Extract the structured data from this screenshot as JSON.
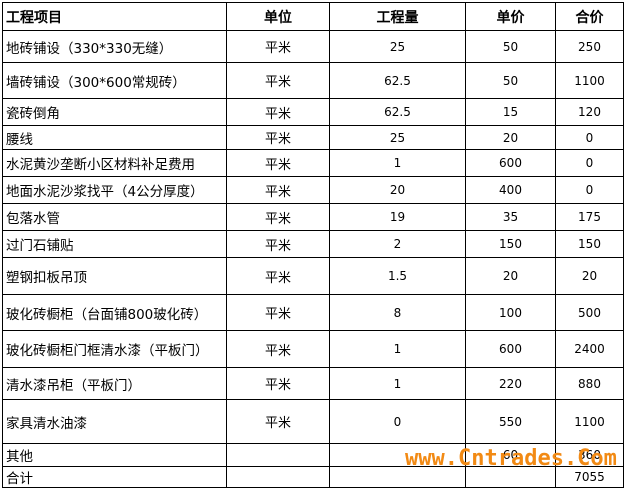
{
  "table": {
    "headers": {
      "name": "工程项目",
      "unit": "单位",
      "qty": "工程量",
      "price": "单价",
      "total": "合价"
    },
    "rows": [
      {
        "name": "地砖铺设（330*330无缝）",
        "unit": "平米",
        "qty": "25",
        "price": "50",
        "total": "250"
      },
      {
        "name": "墙砖铺设（300*600常规砖）",
        "unit": "平米",
        "qty": "62.5",
        "price": "50",
        "total": "1100"
      },
      {
        "name": "瓷砖倒角",
        "unit": "平米",
        "qty": "62.5",
        "price": "15",
        "total": "120"
      },
      {
        "name": "腰线",
        "unit": "平米",
        "qty": "25",
        "price": "20",
        "total": "0"
      },
      {
        "name": "水泥黄沙垄断小区材料补足费用",
        "unit": "平米",
        "qty": "1",
        "price": "600",
        "total": "0"
      },
      {
        "name": "地面水泥沙浆找平（4公分厚度）",
        "unit": "平米",
        "qty": "20",
        "price": "400",
        "total": "0"
      },
      {
        "name": "包落水管",
        "unit": "平米",
        "qty": "19",
        "price": "35",
        "total": "175"
      },
      {
        "name": "过门石铺贴",
        "unit": "平米",
        "qty": "2",
        "price": "150",
        "total": "150"
      },
      {
        "name": "塑钢扣板吊顶",
        "unit": "平米",
        "qty": "1.5",
        "price": "20",
        "total": "20"
      },
      {
        "name": "玻化砖橱柜（台面铺800玻化砖）",
        "unit": "平米",
        "qty": "8",
        "price": "100",
        "total": "500"
      },
      {
        "name": "玻化砖橱柜门框清水漆（平板门）",
        "unit": "平米",
        "qty": "1",
        "price": "600",
        "total": "2400"
      },
      {
        "name": "清水漆吊柜（平板门）",
        "unit": "平米",
        "qty": "1",
        "price": "220",
        "total": "880"
      },
      {
        "name": "家具清水油漆",
        "unit": "平米",
        "qty": "0",
        "price": "550",
        "total": "1100"
      },
      {
        "name": "其他",
        "unit": "",
        "qty": "",
        "price": "60",
        "total": "360"
      },
      {
        "name": "合计",
        "unit": "",
        "qty": "",
        "price": "",
        "total": "7055"
      }
    ]
  },
  "watermark": {
    "text": "www.Cntrades.Com",
    "color": "#f28a14"
  }
}
